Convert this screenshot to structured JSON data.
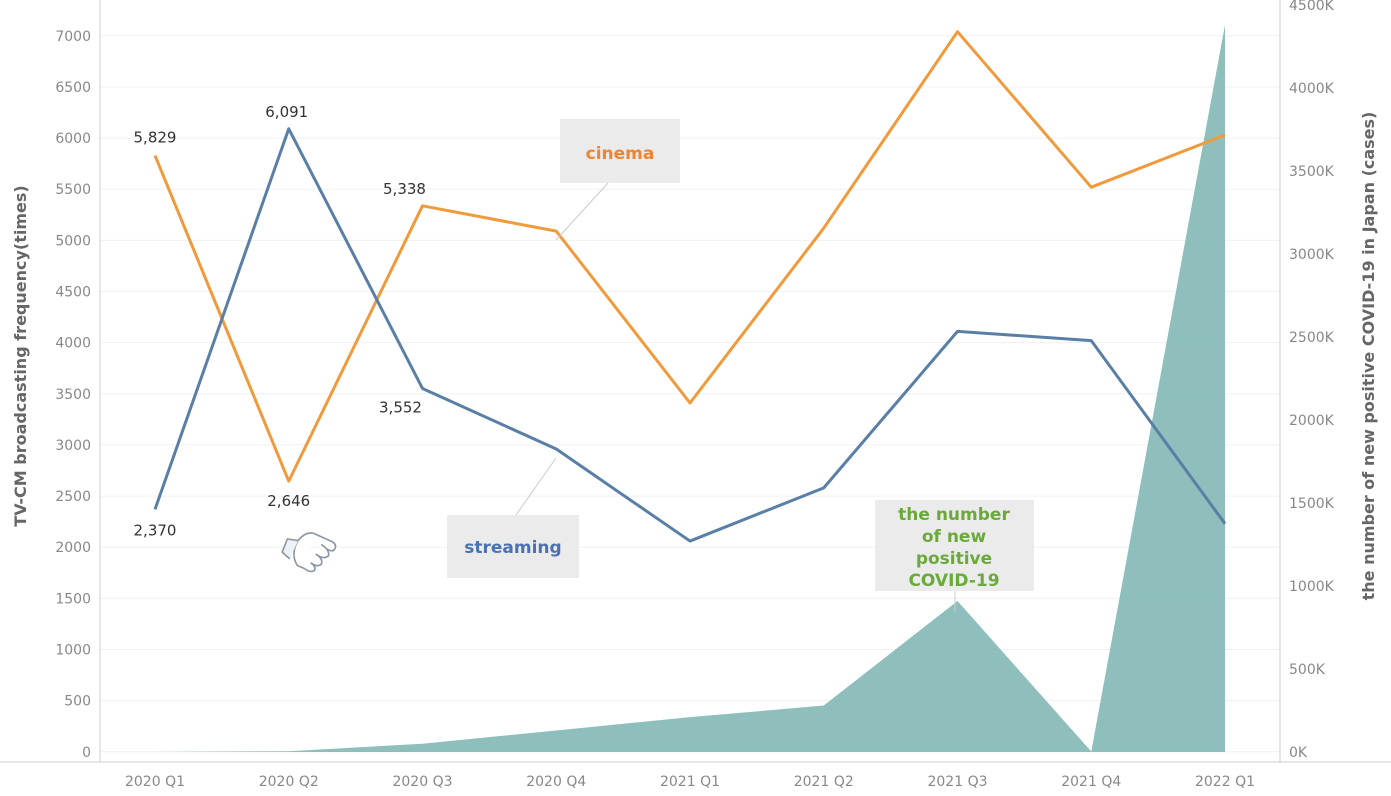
{
  "chart_data": {
    "type": "line",
    "categories": [
      "2020 Q1",
      "2020 Q2",
      "2020 Q3",
      "2020 Q4",
      "2021 Q1",
      "2021 Q2",
      "2021 Q3",
      "2021 Q4",
      "2022 Q1"
    ],
    "series": [
      {
        "name": "cinema",
        "axis": "left",
        "chart": "line",
        "color": "#f09a3c",
        "values": [
          5829,
          2646,
          5338,
          5090,
          3410,
          5120,
          7040,
          5520,
          6030
        ]
      },
      {
        "name": "streaming",
        "axis": "left",
        "chart": "line",
        "color": "#5a7fa6",
        "values": [
          2370,
          6091,
          3552,
          2960,
          2060,
          2580,
          4110,
          4020,
          2230
        ]
      },
      {
        "name": "the number of new positive COVID-19",
        "axis": "right",
        "chart": "area",
        "color": "#7ab4b0",
        "values": [
          0,
          5000,
          50000,
          130000,
          210000,
          280000,
          910000,
          3000,
          4380000
        ]
      }
    ],
    "data_labels": {
      "cinema": [
        "5,829",
        "2,646",
        "5,338"
      ],
      "streaming": [
        "2,370",
        "6,091",
        "3,552"
      ]
    },
    "y_left": {
      "label": "TV-CM broadcasting frequency(times)",
      "range": [
        -100,
        7350
      ],
      "ticks": [
        "0",
        "500",
        "1000",
        "1500",
        "2000",
        "2500",
        "3000",
        "3500",
        "4000",
        "4500",
        "5000",
        "5500",
        "6000",
        "6500",
        "7000"
      ]
    },
    "y_right": {
      "label": "the number of new positive COVID-19 in Japan (cases)",
      "range": [
        -60000,
        4530000
      ],
      "ticks": [
        "0K",
        "500K",
        "1000K",
        "1500K",
        "2000K",
        "2500K",
        "3000K",
        "3500K",
        "4000K",
        "4500K"
      ]
    },
    "grid": true
  },
  "callouts": {
    "cinema": "cinema",
    "streaming": "streaming",
    "covid": [
      "the number",
      "of new",
      "positive",
      "COVID-19"
    ]
  },
  "icons": {
    "pointer": "pointing-hand-icon"
  }
}
